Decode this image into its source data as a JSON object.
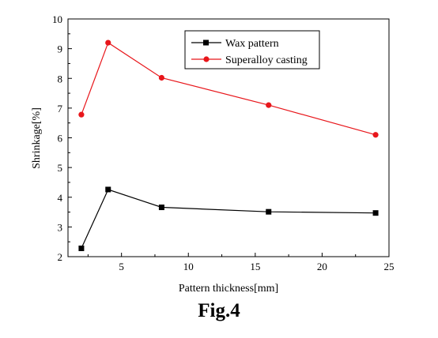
{
  "figure": {
    "caption": "Fig.4"
  },
  "chart_data": {
    "type": "line",
    "xlabel": "Pattern thickness[mm]",
    "ylabel": "Shrinkage[%]",
    "xlim": [
      1,
      25
    ],
    "ylim": [
      2,
      10
    ],
    "xticks": [
      5,
      10,
      15,
      20,
      25
    ],
    "yticks": [
      2,
      3,
      4,
      5,
      6,
      7,
      8,
      9,
      10
    ],
    "grid": false,
    "legend_position": "top-right",
    "series": [
      {
        "name": "Wax pattern",
        "color": "#000000",
        "marker": "square",
        "x": [
          2,
          4,
          8,
          16,
          24
        ],
        "y": [
          2.28,
          4.26,
          3.66,
          3.51,
          3.47
        ]
      },
      {
        "name": "Superalloy casting",
        "color": "#e8161b",
        "marker": "circle",
        "x": [
          2,
          4,
          8,
          16,
          24
        ],
        "y": [
          6.78,
          9.2,
          8.02,
          7.1,
          6.1
        ]
      }
    ]
  }
}
